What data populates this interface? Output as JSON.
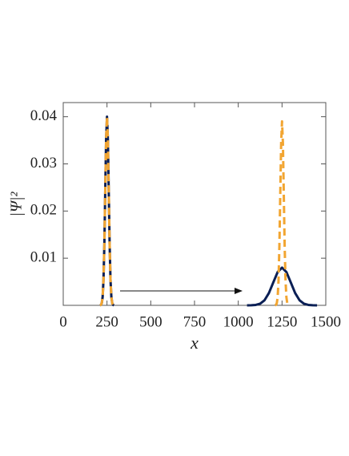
{
  "chart_data": {
    "type": "line",
    "xlabel": "x",
    "ylabel": "|Ψ|²",
    "xlim": [
      0,
      1500
    ],
    "ylim": [
      0,
      0.043
    ],
    "xticks": [
      0,
      250,
      500,
      750,
      1000,
      1250,
      1500
    ],
    "yticks": [
      0.01,
      0.02,
      0.03,
      0.04
    ],
    "series": [
      {
        "color": "#0a1f55",
        "dashed": false,
        "x": [
          210,
          215,
          220,
          225,
          230,
          235,
          240,
          245,
          250,
          255,
          260,
          265,
          270,
          275,
          280,
          285,
          290
        ],
        "values": [
          1e-05,
          9e-05,
          0.00044,
          0.00176,
          0.0054,
          0.013,
          0.0243,
          0.0353,
          0.04,
          0.0353,
          0.0243,
          0.013,
          0.0054,
          0.00176,
          0.00044,
          9e-05,
          1e-05
        ]
      },
      {
        "color": "#0a1f55",
        "dashed": false,
        "x": [
          1050,
          1075,
          1100,
          1125,
          1150,
          1175,
          1200,
          1225,
          1250,
          1275,
          1300,
          1325,
          1350,
          1375,
          1400,
          1425,
          1450
        ],
        "values": [
          3e-06,
          1.8e-05,
          8.9e-05,
          0.00035,
          0.00108,
          0.0026,
          0.00485,
          0.00706,
          0.008,
          0.00706,
          0.00485,
          0.0026,
          0.00108,
          0.00035,
          8.9e-05,
          1.8e-05,
          3e-06
        ]
      },
      {
        "color": "#f2a531",
        "dashed": true,
        "x": [
          210,
          215,
          220,
          225,
          230,
          235,
          240,
          245,
          250,
          255,
          260,
          265,
          270,
          275,
          280,
          285,
          290
        ],
        "values": [
          1e-05,
          9e-05,
          0.00044,
          0.00176,
          0.0054,
          0.013,
          0.0243,
          0.0353,
          0.04,
          0.0353,
          0.0243,
          0.013,
          0.0054,
          0.00176,
          0.00044,
          9e-05,
          1e-05
        ]
      },
      {
        "color": "#f2a531",
        "dashed": true,
        "x": [
          1210,
          1215,
          1220,
          1225,
          1230,
          1235,
          1240,
          1245,
          1250,
          1255,
          1260,
          1265,
          1270,
          1275,
          1280,
          1285,
          1290
        ],
        "values": [
          1e-05,
          9e-05,
          0.00043,
          0.00171,
          0.00528,
          0.01266,
          0.02365,
          0.03442,
          0.039,
          0.03442,
          0.02365,
          0.01266,
          0.00528,
          0.00171,
          0.00043,
          9e-05,
          1e-05
        ]
      }
    ]
  }
}
